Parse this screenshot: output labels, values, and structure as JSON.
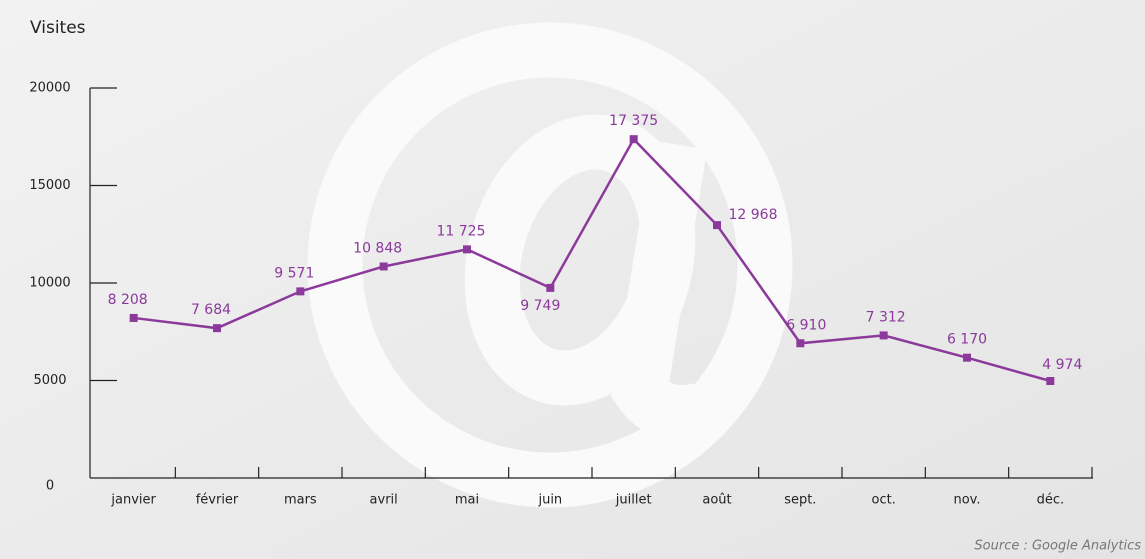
{
  "chart_data": {
    "type": "line",
    "y_label": "Visites",
    "source": "Source : Google Analytics",
    "categories": [
      "janvier",
      "février",
      "mars",
      "avril",
      "mai",
      "juin",
      "juillet",
      "août",
      "sept.",
      "oct.",
      "nov.",
      "déc."
    ],
    "values": [
      8208,
      7684,
      9571,
      10848,
      11725,
      9749,
      17375,
      12968,
      6910,
      7312,
      6170,
      4974
    ],
    "value_labels": [
      "8 208",
      "7 684",
      "9 571",
      "10 848",
      "11 725",
      "9 749",
      "17 375",
      "12 968",
      "6 910",
      "7 312",
      "6 170",
      "4 974"
    ],
    "color": "#8b3a9b",
    "ylim": [
      0,
      20000
    ],
    "yticks": [
      0,
      5000,
      10000,
      15000,
      20000
    ]
  }
}
